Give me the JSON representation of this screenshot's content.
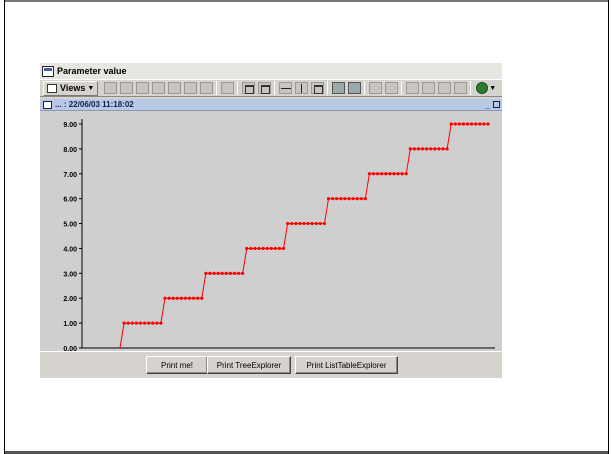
{
  "window": {
    "title": "Parameter value"
  },
  "toolbar": {
    "views_label": "Views",
    "buttons": [
      "layout-1",
      "layout-2",
      "layout-3",
      "layout-4",
      "layout-5",
      "layout-6",
      "layout-7",
      "layout-8",
      "grid",
      "tile",
      "split-h",
      "split-v",
      "split-4",
      "table",
      "grid-dark",
      "grid-lines",
      "properties",
      "list",
      "print",
      "export",
      "green-tool"
    ]
  },
  "inner_frame": {
    "title": "... : 22/06/03 11:18:02"
  },
  "buttons": {
    "print_me": "Print me!",
    "print_tree": "Print TreeExplorer",
    "print_list_table": "Print ListTableExplorer"
  },
  "chart_data": {
    "type": "line",
    "title": "",
    "xlabel": "",
    "ylabel": "",
    "ylim": [
      0,
      9
    ],
    "yticks": [
      "9.00",
      "8.00",
      "7.00",
      "6.00",
      "5.00",
      "4.00",
      "3.00",
      "2.00",
      "1.00",
      "0.00"
    ],
    "grid": false,
    "legend": "none",
    "series": [
      {
        "color": "#ff0000",
        "steps": [
          {
            "level": 0,
            "points": 1
          },
          {
            "level": 1,
            "points": 10
          },
          {
            "level": 2,
            "points": 10
          },
          {
            "level": 3,
            "points": 10
          },
          {
            "level": 4,
            "points": 10
          },
          {
            "level": 5,
            "points": 10
          },
          {
            "level": 6,
            "points": 10
          },
          {
            "level": 7,
            "points": 10
          },
          {
            "level": 8,
            "points": 10
          },
          {
            "level": 9,
            "points": 10
          }
        ]
      }
    ]
  }
}
